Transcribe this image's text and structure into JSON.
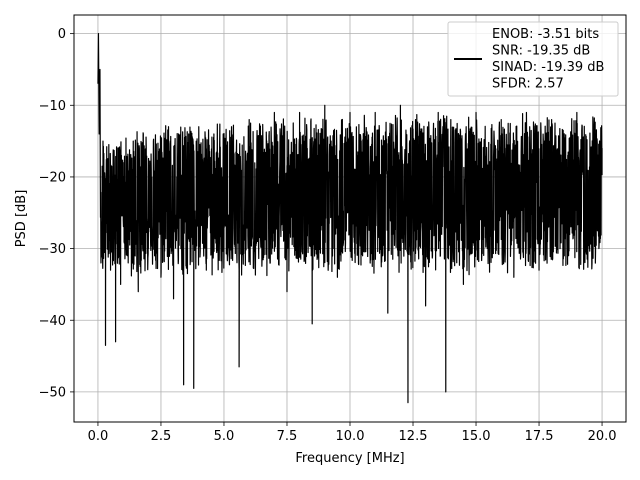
{
  "chart_data": {
    "type": "line",
    "xlabel": "Frequency [MHz]",
    "ylabel": "PSD [dB]",
    "xlim": [
      -0.95,
      20.95
    ],
    "ylim": [
      -54.2,
      2.6
    ],
    "xticks": [
      0.0,
      2.5,
      5.0,
      7.5,
      10.0,
      12.5,
      15.0,
      17.5,
      20.0
    ],
    "xtick_labels": [
      "0.0",
      "2.5",
      "5.0",
      "7.5",
      "10.0",
      "12.5",
      "15.0",
      "17.5",
      "20.0"
    ],
    "yticks": [
      0,
      -10,
      -20,
      -30,
      -40,
      -50
    ],
    "ytick_labels": [
      "0",
      "−10",
      "−20",
      "−30",
      "−40",
      "−50"
    ],
    "grid": true,
    "legend_position": "top-right",
    "legend_lines": [
      "ENOB: -3.51 bits",
      "SNR: -19.35 dB",
      "SINAD: -19.39 dB",
      "SFDR: 2.57"
    ],
    "line_color": "#000000",
    "series": [
      {
        "description": "noisy PSD trace, roughly sampled envelope",
        "x": [
          0.0,
          0.02,
          0.05,
          0.08,
          0.12,
          0.2,
          0.3,
          0.4,
          0.5,
          0.6,
          0.7,
          0.8,
          0.9,
          1.0,
          1.2,
          1.4,
          1.6,
          1.8,
          2.0,
          2.2,
          2.5,
          2.8,
          3.0,
          3.2,
          3.4,
          3.6,
          3.8,
          4.0,
          4.3,
          4.6,
          5.0,
          5.3,
          5.6,
          6.0,
          6.5,
          7.0,
          7.5,
          8.0,
          8.5,
          9.0,
          9.5,
          10.0,
          10.5,
          11.0,
          11.5,
          12.0,
          12.3,
          12.6,
          13.0,
          13.5,
          13.8,
          14.0,
          14.5,
          15.0,
          15.5,
          16.0,
          16.5,
          17.0,
          17.5,
          18.0,
          18.5,
          19.0,
          19.5,
          20.0
        ],
        "y": [
          -7,
          0,
          -14,
          -5,
          -32,
          -15,
          -43.5,
          -24,
          -33,
          -17,
          -43,
          -16,
          -35,
          -18,
          -32,
          -15,
          -36,
          -14,
          -30,
          -15,
          -34,
          -13,
          -37,
          -14,
          -49,
          -14,
          -49.5,
          -13,
          -33,
          -14,
          -31,
          -13,
          -46.5,
          -12,
          -28,
          -11,
          -36,
          -11,
          -40.5,
          -10,
          -34,
          -11,
          -31,
          -11,
          -39,
          -10,
          -51.5,
          -12,
          -38,
          -11,
          -50,
          -12,
          -35,
          -11,
          -30,
          -12,
          -34,
          -11,
          -33,
          -12,
          -31,
          -11,
          -30,
          -16
        ]
      }
    ]
  }
}
